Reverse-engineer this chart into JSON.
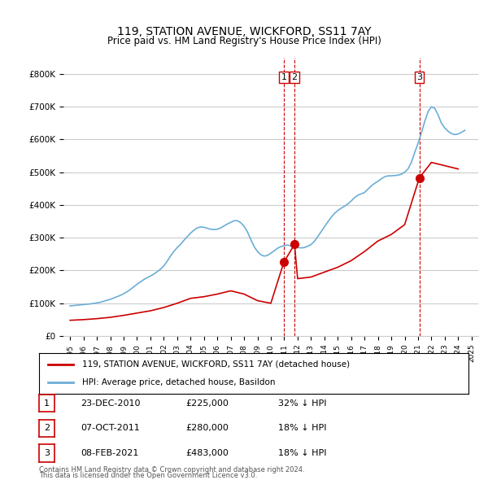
{
  "title": "119, STATION AVENUE, WICKFORD, SS11 7AY",
  "subtitle": "Price paid vs. HM Land Registry's House Price Index (HPI)",
  "footer1": "Contains HM Land Registry data © Crown copyright and database right 2024.",
  "footer2": "This data is licensed under the Open Government Licence v3.0.",
  "legend_red": "119, STATION AVENUE, WICKFORD, SS11 7AY (detached house)",
  "legend_blue": "HPI: Average price, detached house, Basildon",
  "sale_events": [
    {
      "num": 1,
      "date": "23-DEC-2010",
      "price": "£225,000",
      "pct": "32% ↓ HPI"
    },
    {
      "num": 2,
      "date": "07-OCT-2011",
      "price": "£280,000",
      "pct": "18% ↓ HPI"
    },
    {
      "num": 3,
      "date": "08-FEB-2021",
      "price": "£483,000",
      "pct": "18% ↓ HPI"
    }
  ],
  "vline_dates": [
    2010.97,
    2011.77,
    2021.1
  ],
  "sale_points_red": [
    [
      2010.97,
      225000
    ],
    [
      2011.77,
      280000
    ],
    [
      2021.1,
      483000
    ]
  ],
  "ylim": [
    0,
    850000
  ],
  "xlim": [
    1994.5,
    2025.5
  ],
  "yticks": [
    0,
    100000,
    200000,
    300000,
    400000,
    500000,
    600000,
    700000,
    800000
  ],
  "xticks": [
    1995,
    1996,
    1997,
    1998,
    1999,
    2000,
    2001,
    2002,
    2003,
    2004,
    2005,
    2006,
    2007,
    2008,
    2009,
    2010,
    2011,
    2012,
    2013,
    2014,
    2015,
    2016,
    2017,
    2018,
    2019,
    2020,
    2021,
    2022,
    2023,
    2024,
    2025
  ],
  "hpi_color": "#6baed6",
  "red_color": "#cc0000",
  "vline_color": "#cc0000",
  "grid_color": "#cccccc",
  "bg_color": "#ffffff",
  "hpi_data": {
    "x": [
      1995.0,
      1995.25,
      1995.5,
      1995.75,
      1996.0,
      1996.25,
      1996.5,
      1996.75,
      1997.0,
      1997.25,
      1997.5,
      1997.75,
      1998.0,
      1998.25,
      1998.5,
      1998.75,
      1999.0,
      1999.25,
      1999.5,
      1999.75,
      2000.0,
      2000.25,
      2000.5,
      2000.75,
      2001.0,
      2001.25,
      2001.5,
      2001.75,
      2002.0,
      2002.25,
      2002.5,
      2002.75,
      2003.0,
      2003.25,
      2003.5,
      2003.75,
      2004.0,
      2004.25,
      2004.5,
      2004.75,
      2005.0,
      2005.25,
      2005.5,
      2005.75,
      2006.0,
      2006.25,
      2006.5,
      2006.75,
      2007.0,
      2007.25,
      2007.5,
      2007.75,
      2008.0,
      2008.25,
      2008.5,
      2008.75,
      2009.0,
      2009.25,
      2009.5,
      2009.75,
      2010.0,
      2010.25,
      2010.5,
      2010.75,
      2011.0,
      2011.25,
      2011.5,
      2011.75,
      2012.0,
      2012.25,
      2012.5,
      2012.75,
      2013.0,
      2013.25,
      2013.5,
      2013.75,
      2014.0,
      2014.25,
      2014.5,
      2014.75,
      2015.0,
      2015.25,
      2015.5,
      2015.75,
      2016.0,
      2016.25,
      2016.5,
      2016.75,
      2017.0,
      2017.25,
      2017.5,
      2017.75,
      2018.0,
      2018.25,
      2018.5,
      2018.75,
      2019.0,
      2019.25,
      2019.5,
      2019.75,
      2020.0,
      2020.25,
      2020.5,
      2020.75,
      2021.0,
      2021.25,
      2021.5,
      2021.75,
      2022.0,
      2022.25,
      2022.5,
      2022.75,
      2023.0,
      2023.25,
      2023.5,
      2023.75,
      2024.0,
      2024.25,
      2024.5
    ],
    "y": [
      92000,
      93000,
      94000,
      95000,
      96000,
      97000,
      98000,
      99500,
      101000,
      103000,
      106000,
      109000,
      112000,
      116000,
      120000,
      124000,
      129000,
      135000,
      142000,
      150000,
      158000,
      165000,
      172000,
      178000,
      183000,
      189000,
      196000,
      204000,
      214000,
      228000,
      244000,
      258000,
      270000,
      280000,
      292000,
      303000,
      314000,
      323000,
      330000,
      333000,
      332000,
      329000,
      326000,
      325000,
      326000,
      330000,
      336000,
      342000,
      347000,
      352000,
      352000,
      346000,
      335000,
      318000,
      295000,
      273000,
      258000,
      248000,
      244000,
      246000,
      253000,
      260000,
      268000,
      273000,
      276000,
      278000,
      275000,
      274000,
      270000,
      269000,
      270000,
      274000,
      279000,
      289000,
      303000,
      318000,
      333000,
      348000,
      362000,
      374000,
      383000,
      390000,
      396000,
      403000,
      412000,
      422000,
      430000,
      434000,
      438000,
      448000,
      458000,
      466000,
      472000,
      480000,
      486000,
      489000,
      489000,
      490000,
      491000,
      494000,
      500000,
      510000,
      530000,
      560000,
      588000,
      620000,
      655000,
      685000,
      700000,
      695000,
      675000,
      650000,
      635000,
      625000,
      618000,
      615000,
      617000,
      622000,
      628000
    ]
  },
  "red_data": {
    "x": [
      1995.0,
      1996.0,
      1997.0,
      1998.0,
      1999.0,
      2000.0,
      2001.0,
      2002.0,
      2003.0,
      2004.0,
      2005.0,
      2006.0,
      2007.0,
      2008.0,
      2009.0,
      2010.0,
      2010.97,
      2011.77,
      2012.0,
      2013.0,
      2014.0,
      2015.0,
      2016.0,
      2017.0,
      2018.0,
      2019.0,
      2020.0,
      2021.1,
      2022.0,
      2023.0,
      2024.0
    ],
    "y": [
      48000,
      50000,
      53000,
      57000,
      63000,
      70000,
      77000,
      87000,
      100000,
      115000,
      120000,
      128000,
      138000,
      128000,
      108000,
      100000,
      225000,
      280000,
      175000,
      180000,
      195000,
      210000,
      230000,
      258000,
      290000,
      310000,
      340000,
      483000,
      530000,
      520000,
      510000
    ]
  }
}
